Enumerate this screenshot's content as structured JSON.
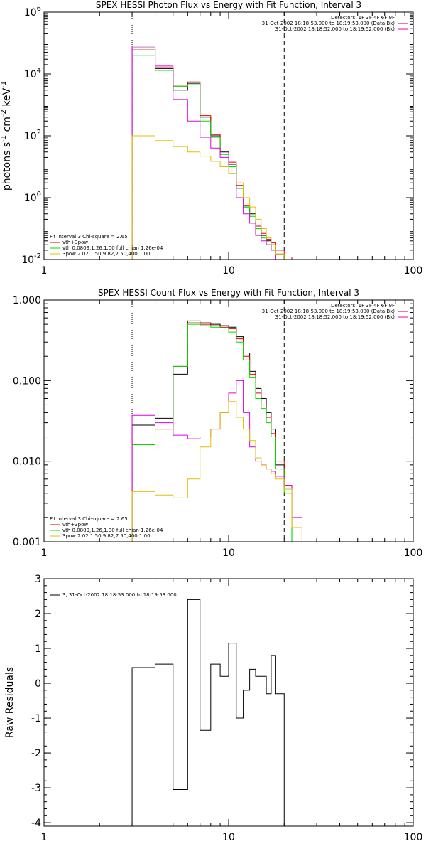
{
  "chart_data": [
    {
      "type": "line",
      "title": "SPEX HESSI Photon Flux vs Energy with Fit Function, Interval 3",
      "ylabel_parts": [
        "photons s",
        "-1",
        " cm",
        "-2",
        " keV",
        "-1"
      ],
      "xscale": "log",
      "yscale": "log",
      "xlim": [
        1,
        100
      ],
      "ylim": [
        0.01,
        1000000
      ],
      "xticks": [
        {
          "v": 1,
          "l": "1"
        },
        {
          "v": 10,
          "l": "10"
        },
        {
          "v": 100,
          "l": "100"
        }
      ],
      "yticks": [
        {
          "v": 0.01,
          "b": "10",
          "e": "-2"
        },
        {
          "v": 1,
          "b": "10",
          "e": "0"
        },
        {
          "v": 100,
          "b": "10",
          "e": "2"
        },
        {
          "v": 10000,
          "b": "10",
          "e": "4"
        },
        {
          "v": 1000000,
          "b": "10",
          "e": "6"
        }
      ],
      "vlines": [
        {
          "x": 3,
          "style": "dotted"
        },
        {
          "x": 20,
          "style": "dashed"
        }
      ],
      "info_lines": [
        "Detectors: 1F 3F 4F 6F 9F",
        "31-Oct-2002 18:18:53.000 to 18:19:53.000 (Data-Bk)",
        "31-Oct-2002 18:18:52.000 to 18:19:52.000 (Bk)"
      ],
      "info_colors": [
        "#e00000",
        "#e000e0"
      ],
      "legend_lines": [
        {
          "text": "Fit Interval  3    Chi-square = 2.65",
          "color": ""
        },
        {
          "text": "vth+3pow",
          "color": "#e00000"
        },
        {
          "text": "vth 0.0809,1.26,1.00  full chian 1.26e-04",
          "color": "#00dd00"
        },
        {
          "text": "3pow 2.02,1.50,9.82,7.50,400,1.00",
          "color": "#e0c000"
        }
      ],
      "edges": [
        3,
        4,
        5,
        6,
        7,
        8,
        9,
        10,
        11,
        12,
        13,
        14,
        15,
        16,
        17,
        18,
        20,
        22,
        25
      ],
      "series": [
        {
          "color": "#000000",
          "values": [
            70000,
            15000,
            3000,
            5000,
            400,
            100,
            30,
            12,
            2,
            0.5,
            0.3,
            0.1,
            0.06,
            0.04,
            0.03,
            0.015,
            0.01,
            0.01
          ]
        },
        {
          "color": "#e00000",
          "values": [
            60000,
            16000,
            4000,
            5500,
            450,
            110,
            32,
            14,
            2.5,
            0.55,
            0.32,
            0.12,
            0.07,
            0.045,
            0.035,
            0.02,
            0.012,
            0.01
          ]
        },
        {
          "color": "#00dd00",
          "values": [
            40000,
            13000,
            4000,
            4500,
            300,
            90,
            25,
            10,
            2,
            0.5,
            0.25,
            0.1,
            0.05,
            0.03,
            0.02,
            0.01,
            0.008,
            0.005
          ]
        },
        {
          "color": "#e000e0",
          "values": [
            80000,
            18000,
            1500,
            300,
            90,
            40,
            20,
            6,
            1,
            0.3,
            0.15,
            0.06,
            0.04,
            0.03,
            0.02,
            0.01,
            0.008,
            0.005
          ]
        },
        {
          "color": "#e0c000",
          "values": [
            100,
            70,
            45,
            30,
            22,
            15,
            10,
            6,
            3,
            1,
            0.5,
            0.2,
            0.1,
            0.05,
            0.03,
            0.015,
            0.01,
            0.005
          ]
        }
      ]
    },
    {
      "type": "line",
      "title": "SPEX HESSI Count Flux vs Energy with Fit Function, Interval 3",
      "xscale": "log",
      "yscale": "log",
      "xlim": [
        1,
        100
      ],
      "ylim": [
        0.001,
        1
      ],
      "xticks": [
        {
          "v": 1,
          "l": "1"
        },
        {
          "v": 10,
          "l": "10"
        },
        {
          "v": 100,
          "l": "100"
        }
      ],
      "yticks": [
        {
          "v": 0.001,
          "l": "0.001"
        },
        {
          "v": 0.01,
          "l": "0.010"
        },
        {
          "v": 0.1,
          "l": "0.100"
        },
        {
          "v": 1,
          "l": "1.000"
        }
      ],
      "vlines": [
        {
          "x": 3,
          "style": "dotted"
        },
        {
          "x": 20,
          "style": "dashed"
        }
      ],
      "info_lines": [
        "Detectors: 1F 3F 4F 6F 9F",
        "31-Oct-2002 18:18:53.000 to 18:19:53.000 (Data-Bk)",
        "31-Oct-2002 18:18:52.000 to 18:19:52.000 (Bk)"
      ],
      "info_colors": [
        "#e00000",
        "#e000e0"
      ],
      "legend_lines": [
        {
          "text": "Fit Interval  3    Chi-square = 2.65",
          "color": ""
        },
        {
          "text": "vth+3pow",
          "color": "#e00000"
        },
        {
          "text": "vth 0.0809,1.26,1.00  full chian 1.26e-04",
          "color": "#00dd00"
        },
        {
          "text": "3pow 2.02,1.50,9.82,7.50,400,1.00",
          "color": "#e0c000"
        }
      ],
      "edges": [
        3,
        4,
        5,
        6,
        7,
        8,
        9,
        10,
        11,
        12,
        13,
        14,
        15,
        16,
        17,
        18,
        20,
        22,
        25
      ],
      "series": [
        {
          "color": "#000000",
          "values": [
            0.028,
            0.034,
            0.12,
            0.55,
            0.52,
            0.5,
            0.48,
            0.46,
            0.35,
            0.22,
            0.13,
            0.08,
            0.06,
            0.04,
            0.025,
            0.009,
            0.005,
            0.001
          ]
        },
        {
          "color": "#e00000",
          "values": [
            0.02,
            0.025,
            0.15,
            0.52,
            0.5,
            0.48,
            0.46,
            0.44,
            0.33,
            0.2,
            0.12,
            0.07,
            0.05,
            0.035,
            0.022,
            0.01,
            0.005,
            0.0015
          ]
        },
        {
          "color": "#00dd00",
          "values": [
            0.016,
            0.02,
            0.15,
            0.5,
            0.48,
            0.46,
            0.45,
            0.4,
            0.3,
            0.18,
            0.11,
            0.06,
            0.045,
            0.03,
            0.02,
            0.008,
            0.004,
            0.001
          ]
        },
        {
          "color": "#e000e0",
          "values": [
            0.037,
            0.03,
            0.021,
            0.019,
            0.02,
            0.025,
            0.04,
            0.07,
            0.1,
            0.04,
            0.015,
            0.01,
            0.009,
            0.008,
            0.0075,
            0.0065,
            0.005,
            0.002
          ]
        },
        {
          "color": "#e0c000",
          "values": [
            0.0042,
            0.0038,
            0.0035,
            0.006,
            0.015,
            0.025,
            0.04,
            0.055,
            0.035,
            0.025,
            0.018,
            0.011,
            0.009,
            0.008,
            0.007,
            0.006,
            0.0045,
            0.0015
          ]
        }
      ]
    },
    {
      "type": "line",
      "title": "",
      "ylabel": "Raw Residuals",
      "xscale": "log",
      "yscale": "linear",
      "xlim": [
        1,
        100
      ],
      "ylim": [
        -4.1,
        3
      ],
      "xticks": [
        {
          "v": 1,
          "l": "1"
        },
        {
          "v": 10,
          "l": "10"
        },
        {
          "v": 100,
          "l": "100"
        }
      ],
      "yticks": [
        {
          "v": -4,
          "l": "-4"
        },
        {
          "v": -3,
          "l": "-3"
        },
        {
          "v": -2,
          "l": "-2"
        },
        {
          "v": -1,
          "l": "-1"
        },
        {
          "v": 0,
          "l": "0"
        },
        {
          "v": 1,
          "l": "1"
        },
        {
          "v": 2,
          "l": "2"
        },
        {
          "v": 3,
          "l": "3"
        }
      ],
      "vlines": [],
      "info_lines": [],
      "legend_lines": [
        {
          "text": "3, 31-Oct-2002 18:18:53.000 to 18:19:53.000",
          "color": "#000000"
        }
      ],
      "edges": [
        3,
        4,
        5,
        6,
        7,
        8,
        9,
        10,
        11,
        12,
        13,
        14,
        15,
        16,
        17,
        18,
        20
      ],
      "series": [
        {
          "color": "#000000",
          "values": [
            0.45,
            0.55,
            -3.05,
            2.4,
            -1.35,
            0.55,
            0.2,
            1.15,
            -1.0,
            -0.2,
            0.4,
            0.2,
            0.2,
            -0.3,
            0.8,
            -0.3
          ]
        }
      ]
    }
  ]
}
